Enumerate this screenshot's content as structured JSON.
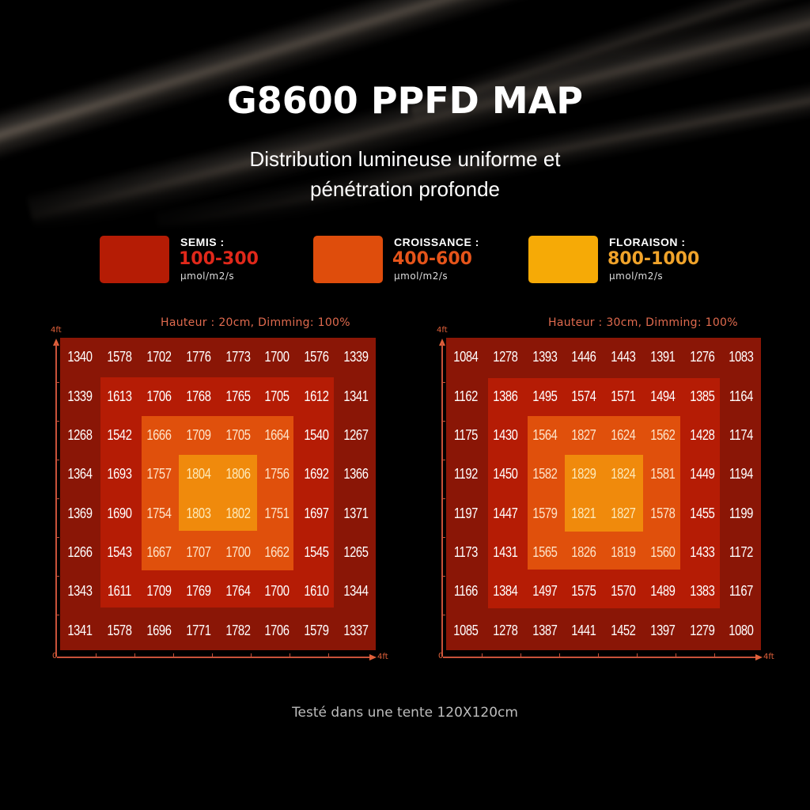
{
  "header": {
    "title": "G8600 PPFD MAP",
    "subtitle_line1": "Distribution lumineuse uniforme et",
    "subtitle_line2": "pénétration profonde"
  },
  "legend": [
    {
      "label": "SEMIS :",
      "range": "100-300",
      "unit": "µmol/m2/s",
      "swatch_color": "#b51c05",
      "range_color": "#e0281a"
    },
    {
      "label": "CROISSANCE :",
      "range": "400-600",
      "unit": "µmol/m2/s",
      "swatch_color": "#df4d0c",
      "range_color": "#e5541a"
    },
    {
      "label": "FLORAISON :",
      "range": "800-1000",
      "unit": "µmol/m2/s",
      "swatch_color": "#f6aa06",
      "range_color": "#f0a32a"
    }
  ],
  "footer": {
    "note": "Testé dans une tente 120X120cm"
  },
  "chart_data": [
    {
      "type": "heatmap",
      "title": "Hauteur : 20cm, Dimming: 100%",
      "xlabel": "4ft",
      "ylabel": "4ft",
      "origin_label": "0",
      "x_range": [
        0,
        4
      ],
      "y_range": [
        0,
        4
      ],
      "unit": "µmol/m2/s",
      "grid": [
        [
          1340,
          1578,
          1702,
          1776,
          1773,
          1700,
          1576,
          1339
        ],
        [
          1339,
          1613,
          1706,
          1768,
          1765,
          1705,
          1612,
          1341
        ],
        [
          1268,
          1542,
          1666,
          1709,
          1705,
          1664,
          1540,
          1267
        ],
        [
          1364,
          1693,
          1757,
          1804,
          1806,
          1756,
          1692,
          1366
        ],
        [
          1369,
          1690,
          1754,
          1803,
          1802,
          1751,
          1697,
          1371
        ],
        [
          1266,
          1543,
          1667,
          1707,
          1700,
          1662,
          1545,
          1265
        ],
        [
          1343,
          1611,
          1709,
          1769,
          1764,
          1700,
          1610,
          1344
        ],
        [
          1341,
          1578,
          1696,
          1771,
          1782,
          1706,
          1579,
          1337
        ]
      ]
    },
    {
      "type": "heatmap",
      "title": "Hauteur : 30cm, Dimming: 100%",
      "xlabel": "4ft",
      "ylabel": "4ft",
      "origin_label": "0",
      "x_range": [
        0,
        4
      ],
      "y_range": [
        0,
        4
      ],
      "unit": "µmol/m2/s",
      "grid": [
        [
          1084,
          1278,
          1393,
          1446,
          1443,
          1391,
          1276,
          1083
        ],
        [
          1162,
          1386,
          1495,
          1574,
          1571,
          1494,
          1385,
          1164
        ],
        [
          1175,
          1430,
          1564,
          1827,
          1624,
          1562,
          1428,
          1174
        ],
        [
          1192,
          1450,
          1582,
          1829,
          1824,
          1581,
          1449,
          1194
        ],
        [
          1197,
          1447,
          1579,
          1821,
          1827,
          1578,
          1455,
          1199
        ],
        [
          1173,
          1431,
          1565,
          1826,
          1819,
          1560,
          1433,
          1172
        ],
        [
          1166,
          1384,
          1497,
          1575,
          1570,
          1489,
          1383,
          1167
        ],
        [
          1085,
          1278,
          1387,
          1441,
          1452,
          1397,
          1279,
          1080
        ]
      ]
    }
  ]
}
